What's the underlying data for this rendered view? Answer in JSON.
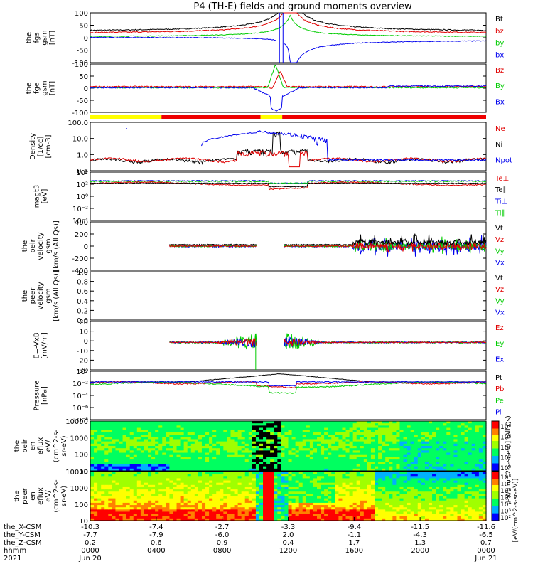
{
  "title": "P4 (TH-E) fields and ground moments overview",
  "colors": {
    "black": "#000000",
    "red": "#e00000",
    "green": "#00cc00",
    "blue": "#0000ee",
    "yellow": "#ffff00",
    "barred": "#ee0000"
  },
  "chart_data": [
    {
      "type": "line",
      "name": "fgs",
      "ylabel": [
        "the",
        "fgs",
        "gsm",
        "[nT]"
      ],
      "yticks": [
        "100",
        "50",
        "0",
        "-50",
        "-100"
      ],
      "ylim": [
        -100,
        100
      ],
      "legend": [
        {
          "label": "Bt",
          "color": "#000000"
        },
        {
          "label": "bz",
          "color": "#e00000"
        },
        {
          "label": "by",
          "color": "#00cc00"
        },
        {
          "label": "bx",
          "color": "#0000ee"
        }
      ]
    },
    {
      "type": "line",
      "name": "fge",
      "ylabel": [
        "the",
        "fge",
        "gsm",
        "[nT]"
      ],
      "yticks": [
        "100",
        "50",
        "0",
        "-50",
        "-100"
      ],
      "ylim": [
        -125,
        125
      ],
      "legend": [
        {
          "label": "Bz",
          "color": "#e00000"
        },
        {
          "label": "By",
          "color": "#00cc00"
        },
        {
          "label": "Bx",
          "color": "#0000ee"
        }
      ]
    },
    {
      "type": "bar",
      "name": "mode-bar",
      "segments": [
        {
          "from": 0.0,
          "to": 0.18,
          "color": "yellow"
        },
        {
          "from": 0.18,
          "to": 0.43,
          "color": "red"
        },
        {
          "from": 0.43,
          "to": 0.485,
          "color": "yellow"
        },
        {
          "from": 0.485,
          "to": 1.0,
          "color": "red"
        }
      ]
    },
    {
      "type": "line",
      "name": "density",
      "ylabel": [
        "Density",
        "[1/cc]",
        "[cm-3]"
      ],
      "yticks": [
        "100.0",
        "10.0",
        "1.0",
        "0.1"
      ],
      "ylim": [
        0.05,
        300
      ],
      "legend": [
        {
          "label": "Ne",
          "color": "#e00000"
        },
        {
          "label": "Ni",
          "color": "#000000"
        },
        {
          "label": "Npot",
          "color": "#0000ee"
        }
      ]
    },
    {
      "type": "line",
      "name": "temperature",
      "ylabel": [
        "magt3",
        "[eV]"
      ],
      "yticks": [
        "10⁴",
        "10²",
        "10⁰",
        "10⁻²",
        "10⁻⁴"
      ],
      "ylim": [
        -5,
        5
      ],
      "legend": [
        {
          "label": "Te⊥",
          "color": "#e00000"
        },
        {
          "label": "Te∥",
          "color": "#000000"
        },
        {
          "label": "Ti⊥",
          "color": "#0000ee"
        },
        {
          "label": "Ti∥",
          "color": "#00cc00"
        }
      ]
    },
    {
      "type": "line",
      "name": "peir-velocity",
      "ylabel": [
        "the",
        "peir",
        "velocity",
        "gsm",
        "[km/s (All Qs)]"
      ],
      "yticks": [
        "400",
        "200",
        "0",
        "-200",
        "-400"
      ],
      "ylim": [
        -420,
        420
      ],
      "legend": [
        {
          "label": "Vt",
          "color": "#000000"
        },
        {
          "label": "Vz",
          "color": "#e00000"
        },
        {
          "label": "Vy",
          "color": "#00cc00"
        },
        {
          "label": "Vx",
          "color": "#0000ee"
        }
      ]
    },
    {
      "type": "line",
      "name": "peer-velocity",
      "ylabel": [
        "the",
        "peer",
        "velocity",
        "gsm",
        "[km/s (All Qs)]"
      ],
      "yticks": [
        "1.0",
        "0.8",
        "0.6",
        "0.4",
        "0.2",
        "0.0"
      ],
      "ylim": [
        0,
        1
      ],
      "legend": [
        {
          "label": "Vt",
          "color": "#000000"
        },
        {
          "label": "Vz",
          "color": "#e00000"
        },
        {
          "label": "Vy",
          "color": "#00cc00"
        },
        {
          "label": "Vx",
          "color": "#0000ee"
        }
      ]
    },
    {
      "type": "line",
      "name": "efield",
      "ylabel": [
        "E=-VxB",
        "[mV/m]"
      ],
      "yticks": [
        "20",
        "10",
        "0",
        "-10",
        "-20",
        "-30"
      ],
      "ylim": [
        -33,
        25
      ],
      "legend": [
        {
          "label": "Ez",
          "color": "#e00000"
        },
        {
          "label": "Ey",
          "color": "#00cc00"
        },
        {
          "label": "Ex",
          "color": "#0000ee"
        }
      ]
    },
    {
      "type": "line",
      "name": "pressure",
      "ylabel": [
        "Pressure",
        "[nPa]"
      ],
      "yticks": [
        "10⁰",
        "10⁻²",
        "10⁻⁴",
        "10⁻⁶",
        "10⁻⁸"
      ],
      "ylim": [
        -9,
        1
      ],
      "legend": [
        {
          "label": "Pt",
          "color": "#000000"
        },
        {
          "label": "Pb",
          "color": "#e00000"
        },
        {
          "label": "Pe",
          "color": "#00cc00"
        },
        {
          "label": "Pi",
          "color": "#0000ee"
        }
      ]
    },
    {
      "type": "heatmap",
      "name": "peir-spectrogram",
      "ylabel": [
        "the",
        "peir",
        "en",
        "eflux",
        "eV/",
        "(cm^2-s-",
        "sr-eV)"
      ],
      "yticks": [
        "10000",
        "1000",
        "100",
        "10"
      ],
      "ylim": [
        5,
        25000
      ],
      "colorbar": {
        "ticks": [
          "10⁸",
          "10⁶",
          "10⁴",
          "10²",
          "10⁰"
        ],
        "label": "[eV/(cm^2-s-sr-eV)] (All Qs)"
      }
    },
    {
      "type": "heatmap",
      "name": "peer-spectrogram",
      "ylabel": [
        "the",
        "peer",
        "en",
        "eflux",
        "eV/",
        "(cm^2-s-",
        "sr-eV)"
      ],
      "yticks": [
        "10000",
        "1000",
        "100",
        "10"
      ],
      "ylim": [
        5,
        25000
      ],
      "colorbar": {
        "ticks": [
          "10⁸",
          "10⁷",
          "10⁶",
          "10⁵",
          "10⁴",
          "10³",
          "10²"
        ],
        "label": "[eV/(cm^2-s-sr-eV)]"
      }
    }
  ],
  "axis": {
    "labels": [
      "the_X-CSM",
      "the_Y-CSM",
      "the_Z-CSM",
      "hhmm",
      "2021"
    ],
    "ticks": [
      {
        "pos": 0.0,
        "x": "-10.3",
        "y": "-7.7",
        "z": "0.2",
        "hhmm": "0000",
        "date": "Jun 20"
      },
      {
        "pos": 0.1667,
        "x": "-7.4",
        "y": "-7.9",
        "z": "0.6",
        "hhmm": "0400",
        "date": ""
      },
      {
        "pos": 0.3333,
        "x": "-2.7",
        "y": "-6.0",
        "z": "0.9",
        "hhmm": "0800",
        "date": ""
      },
      {
        "pos": 0.5,
        "x": "-3.3",
        "y": "2.0",
        "z": "0.4",
        "hhmm": "1200",
        "date": ""
      },
      {
        "pos": 0.6667,
        "x": "-9.4",
        "y": "-1.1",
        "z": "1.7",
        "hhmm": "1600",
        "date": ""
      },
      {
        "pos": 0.8333,
        "x": "-11.5",
        "y": "-4.3",
        "z": "1.3",
        "hhmm": "2000",
        "date": ""
      },
      {
        "pos": 1.0,
        "x": "-11.6",
        "y": "-6.5",
        "z": "0.7",
        "hhmm": "0000",
        "date": "Jun 21"
      }
    ]
  }
}
